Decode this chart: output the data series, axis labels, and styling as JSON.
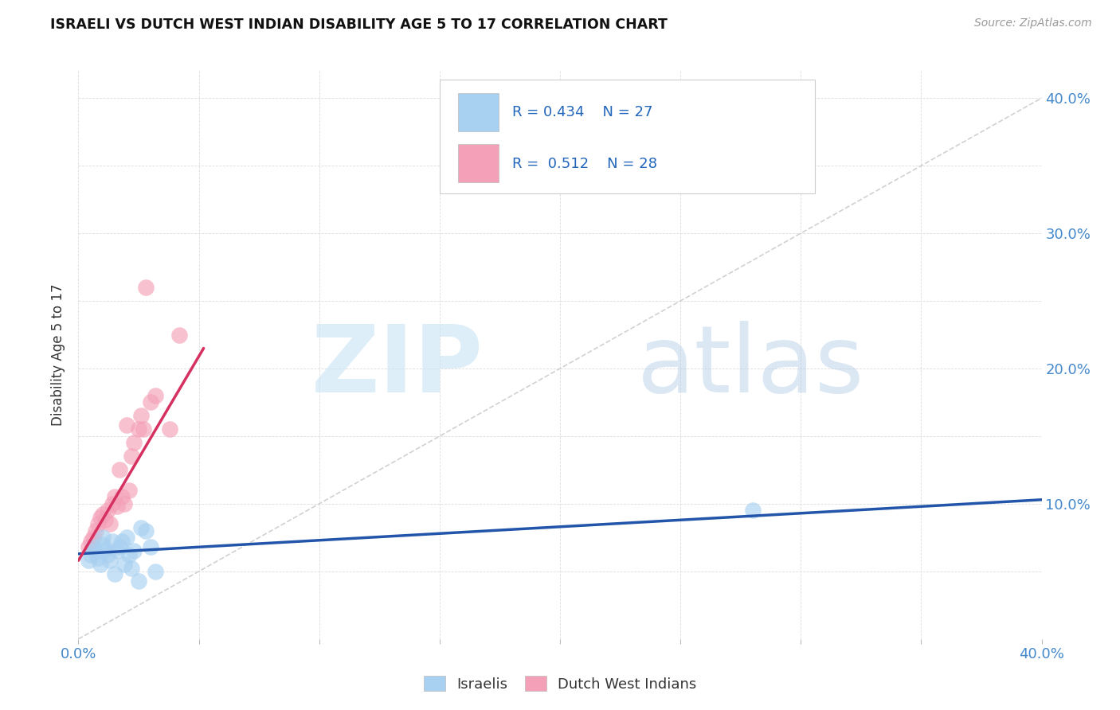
{
  "title": "ISRAELI VS DUTCH WEST INDIAN DISABILITY AGE 5 TO 17 CORRELATION CHART",
  "source": "Source: ZipAtlas.com",
  "ylabel": "Disability Age 5 to 17",
  "xlabel": "",
  "xlim": [
    0.0,
    0.4
  ],
  "ylim": [
    0.0,
    0.42
  ],
  "xtick_positions": [
    0.0,
    0.05,
    0.1,
    0.15,
    0.2,
    0.25,
    0.3,
    0.35,
    0.4
  ],
  "xtick_labels": [
    "0.0%",
    "",
    "",
    "",
    "",
    "",
    "",
    "",
    "40.0%"
  ],
  "ytick_positions": [
    0.0,
    0.05,
    0.1,
    0.15,
    0.2,
    0.25,
    0.3,
    0.35,
    0.4
  ],
  "ytick_labels_right": [
    "",
    "",
    "10.0%",
    "",
    "20.0%",
    "",
    "30.0%",
    "",
    "40.0%"
  ],
  "legend_R1": "R = 0.434",
  "legend_N1": "N = 27",
  "legend_R2": "R =  0.512",
  "legend_N2": "N = 28",
  "israeli_color": "#A8D0F0",
  "dutch_color": "#F4A0B8",
  "israeli_line_color": "#2255AA",
  "dutch_line_color": "#D63060",
  "diagonal_color": "#CCCCCC",
  "background_color": "#FFFFFF",
  "israeli_points_x": [
    0.004,
    0.005,
    0.006,
    0.007,
    0.008,
    0.009,
    0.01,
    0.01,
    0.011,
    0.012,
    0.013,
    0.014,
    0.015,
    0.016,
    0.017,
    0.018,
    0.019,
    0.02,
    0.021,
    0.022,
    0.023,
    0.025,
    0.026,
    0.028,
    0.03,
    0.032,
    0.28
  ],
  "israeli_points_y": [
    0.058,
    0.062,
    0.068,
    0.065,
    0.06,
    0.055,
    0.07,
    0.075,
    0.066,
    0.062,
    0.058,
    0.072,
    0.048,
    0.065,
    0.068,
    0.072,
    0.055,
    0.075,
    0.062,
    0.052,
    0.065,
    0.043,
    0.082,
    0.08,
    0.068,
    0.05,
    0.095
  ],
  "dutch_points_x": [
    0.004,
    0.005,
    0.006,
    0.007,
    0.008,
    0.009,
    0.01,
    0.011,
    0.012,
    0.013,
    0.014,
    0.015,
    0.016,
    0.017,
    0.018,
    0.019,
    0.02,
    0.021,
    0.022,
    0.023,
    0.025,
    0.026,
    0.027,
    0.028,
    0.03,
    0.032,
    0.038,
    0.042
  ],
  "dutch_points_y": [
    0.068,
    0.072,
    0.075,
    0.08,
    0.085,
    0.09,
    0.092,
    0.088,
    0.095,
    0.085,
    0.1,
    0.105,
    0.098,
    0.125,
    0.105,
    0.1,
    0.158,
    0.11,
    0.135,
    0.145,
    0.155,
    0.165,
    0.155,
    0.26,
    0.175,
    0.18,
    0.155,
    0.225
  ],
  "israeli_trend_x": [
    0.0,
    0.4
  ],
  "israeli_trend_y": [
    0.063,
    0.103
  ],
  "dutch_trend_x": [
    0.0,
    0.052
  ],
  "dutch_trend_y": [
    0.058,
    0.215
  ],
  "watermark_zip_color": "#C8E4F5",
  "watermark_atlas_color": "#B0CCE8"
}
